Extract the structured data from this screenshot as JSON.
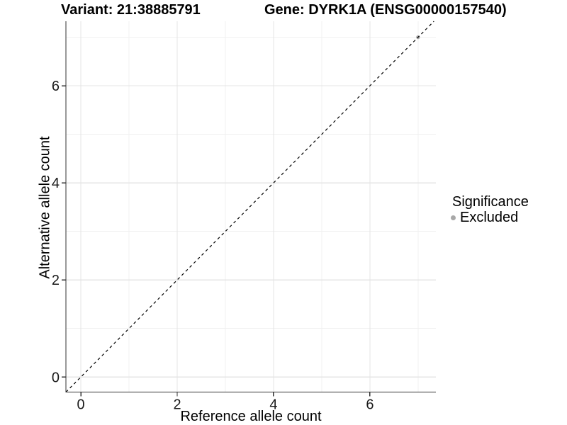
{
  "chart_data": {
    "type": "scatter",
    "titles": {
      "left": "Variant: 21:38885791",
      "right": "Gene: DYRK1A (ENSG00000157540)"
    },
    "xlabel": "Reference allele count",
    "ylabel": "Alternative allele count",
    "x_ticks": [
      0,
      2,
      4,
      6
    ],
    "y_ticks": [
      0,
      2,
      4,
      6
    ],
    "x_minor_ticks": [
      1,
      3,
      5,
      7
    ],
    "y_minor_ticks": [
      1,
      3,
      5,
      7
    ],
    "xlim": [
      -0.31,
      7.37
    ],
    "ylim": [
      -0.31,
      7.33
    ],
    "grid": "major+minor",
    "identity_line": {
      "slope": 1,
      "intercept": 0,
      "style": "dashed",
      "color": "#000000"
    },
    "series": [
      {
        "name": "Excluded",
        "color": "#a8a8a8",
        "points": [
          [
            7,
            7
          ]
        ]
      }
    ],
    "legend": {
      "position": "right",
      "title": "Significance",
      "entries": [
        {
          "label": "Excluded",
          "color": "#a8a8a8"
        }
      ]
    },
    "colors": {
      "grid_major": "#e4e4e4",
      "grid_minor": "#f0f0f0",
      "axis": "#333333",
      "tick_label": "#1a1a1a"
    }
  }
}
